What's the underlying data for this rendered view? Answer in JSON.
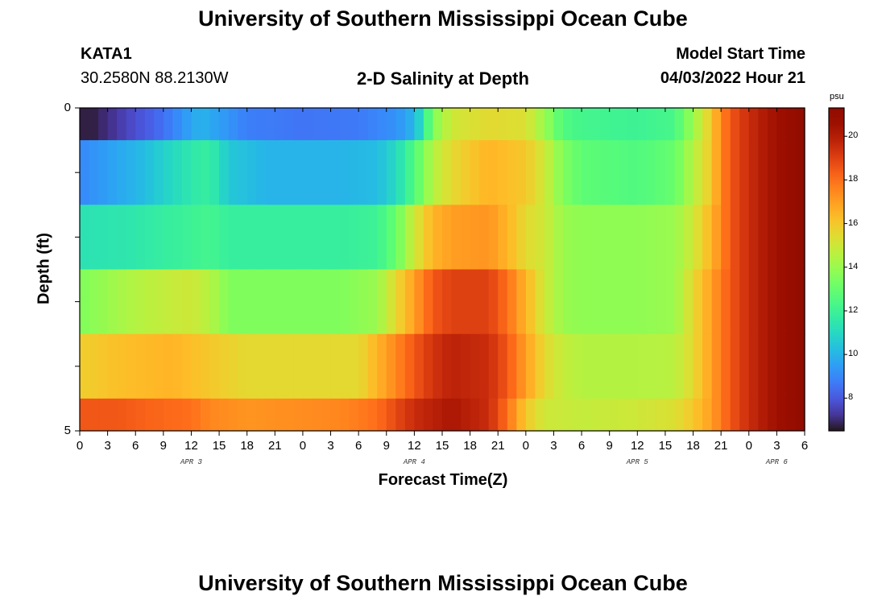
{
  "header": {
    "title": "University of Southern Mississippi Ocean Cube",
    "footer_title": "University of Southern Mississippi Ocean Cube",
    "station": "KATA1",
    "coords": "30.2580N  88.2130W",
    "plot_title": "2-D Salinity at Depth",
    "model_start_label": "Model Start Time",
    "model_start_value": "04/03/2022 Hour 21"
  },
  "chart_data": {
    "type": "heatmap",
    "title": "2-D Salinity at Depth",
    "xlabel": "Forecast Time(Z)",
    "ylabel": "Depth (ft)",
    "x_start_hour": 0,
    "x_end_hour": 78,
    "ylim": [
      0,
      5
    ],
    "y_tick_labels": [
      "0",
      "5"
    ],
    "x_tick_labels": [
      "0",
      "3",
      "6",
      "9",
      "12",
      "15",
      "18",
      "21",
      "0",
      "3",
      "6",
      "9",
      "12",
      "15",
      "18",
      "21",
      "0",
      "3",
      "6",
      "9",
      "12",
      "15",
      "18",
      "21",
      "0",
      "3",
      "6"
    ],
    "date_labels": [
      {
        "label": "APR 3",
        "hour": 12
      },
      {
        "label": "APR 4",
        "hour": 36
      },
      {
        "label": "APR 5",
        "hour": 60
      },
      {
        "label": "APR 6",
        "hour": 75
      }
    ],
    "colorbar": {
      "unit": "psu",
      "min": 6.5,
      "max": 21.3,
      "ticks": [
        8,
        10,
        12,
        14,
        16,
        18,
        20
      ]
    },
    "layers": [
      {
        "depth_from": 0,
        "depth_to": 0.5,
        "keypoints": [
          [
            0,
            6.8
          ],
          [
            1,
            6.6
          ],
          [
            4,
            7.3
          ],
          [
            9,
            8.5
          ],
          [
            13,
            10.0
          ],
          [
            15,
            9.5
          ],
          [
            18,
            8.8
          ],
          [
            24,
            8.6
          ],
          [
            30,
            8.7
          ],
          [
            34,
            9.2
          ],
          [
            36,
            10.0
          ],
          [
            37,
            11.5
          ],
          [
            38,
            13.5
          ],
          [
            40,
            15.0
          ],
          [
            44,
            15.5
          ],
          [
            48,
            15.3
          ],
          [
            50,
            14.0
          ],
          [
            52,
            12.5
          ],
          [
            54,
            12.2
          ],
          [
            60,
            12.0
          ],
          [
            64,
            12.3
          ],
          [
            66,
            14.0
          ],
          [
            68,
            16.0
          ],
          [
            69,
            17.5
          ],
          [
            70,
            18.5
          ],
          [
            72,
            19.5
          ],
          [
            75,
            20.5
          ],
          [
            78,
            21.0
          ]
        ]
      },
      {
        "depth_from": 0.5,
        "depth_to": 1.5,
        "keypoints": [
          [
            0,
            9.0
          ],
          [
            6,
            10.0
          ],
          [
            12,
            11.5
          ],
          [
            14,
            11.8
          ],
          [
            16,
            10.5
          ],
          [
            20,
            10.0
          ],
          [
            28,
            10.0
          ],
          [
            32,
            10.2
          ],
          [
            34,
            11.0
          ],
          [
            36,
            12.5
          ],
          [
            38,
            14.5
          ],
          [
            40,
            15.5
          ],
          [
            44,
            16.5
          ],
          [
            48,
            16.0
          ],
          [
            50,
            15.0
          ],
          [
            52,
            13.5
          ],
          [
            54,
            12.8
          ],
          [
            60,
            12.5
          ],
          [
            64,
            13.0
          ],
          [
            66,
            14.5
          ],
          [
            68,
            16.0
          ],
          [
            69,
            17.5
          ],
          [
            70,
            18.5
          ],
          [
            72,
            19.5
          ],
          [
            75,
            20.5
          ],
          [
            78,
            21.0
          ]
        ]
      },
      {
        "depth_from": 1.5,
        "depth_to": 2.5,
        "keypoints": [
          [
            0,
            11.3
          ],
          [
            6,
            11.5
          ],
          [
            12,
            12.0
          ],
          [
            14,
            12.2
          ],
          [
            16,
            11.8
          ],
          [
            28,
            11.8
          ],
          [
            32,
            12.0
          ],
          [
            34,
            13.0
          ],
          [
            36,
            15.0
          ],
          [
            38,
            16.5
          ],
          [
            40,
            17.0
          ],
          [
            44,
            17.2
          ],
          [
            46,
            16.5
          ],
          [
            48,
            15.5
          ],
          [
            50,
            15.0
          ],
          [
            52,
            14.0
          ],
          [
            54,
            13.8
          ],
          [
            60,
            13.8
          ],
          [
            64,
            14.0
          ],
          [
            66,
            15.0
          ],
          [
            68,
            16.5
          ],
          [
            69,
            17.5
          ],
          [
            70,
            18.5
          ],
          [
            72,
            19.5
          ],
          [
            75,
            20.5
          ],
          [
            78,
            21.0
          ]
        ]
      },
      {
        "depth_from": 2.5,
        "depth_to": 3.5,
        "keypoints": [
          [
            0,
            13.5
          ],
          [
            6,
            14.5
          ],
          [
            12,
            15.0
          ],
          [
            14,
            14.5
          ],
          [
            16,
            13.5
          ],
          [
            28,
            13.5
          ],
          [
            32,
            14.0
          ],
          [
            34,
            15.5
          ],
          [
            36,
            17.0
          ],
          [
            38,
            18.5
          ],
          [
            40,
            19.0
          ],
          [
            44,
            19.0
          ],
          [
            46,
            18.0
          ],
          [
            48,
            16.5
          ],
          [
            50,
            15.0
          ],
          [
            52,
            14.0
          ],
          [
            54,
            13.8
          ],
          [
            60,
            13.8
          ],
          [
            64,
            14.0
          ],
          [
            66,
            15.5
          ],
          [
            68,
            17.0
          ],
          [
            69,
            17.8
          ],
          [
            70,
            18.5
          ],
          [
            72,
            19.5
          ],
          [
            75,
            20.5
          ],
          [
            78,
            21.0
          ]
        ]
      },
      {
        "depth_from": 3.5,
        "depth_to": 4.5,
        "keypoints": [
          [
            0,
            15.8
          ],
          [
            4,
            16.2
          ],
          [
            10,
            16.5
          ],
          [
            14,
            16.0
          ],
          [
            18,
            15.5
          ],
          [
            30,
            15.5
          ],
          [
            32,
            16.5
          ],
          [
            34,
            17.5
          ],
          [
            36,
            18.5
          ],
          [
            38,
            19.3
          ],
          [
            40,
            19.8
          ],
          [
            44,
            19.5
          ],
          [
            46,
            18.5
          ],
          [
            48,
            17.0
          ],
          [
            50,
            15.5
          ],
          [
            52,
            14.8
          ],
          [
            54,
            14.5
          ],
          [
            60,
            14.5
          ],
          [
            64,
            14.6
          ],
          [
            66,
            15.5
          ],
          [
            68,
            17.0
          ],
          [
            69,
            17.8
          ],
          [
            70,
            18.5
          ],
          [
            72,
            19.5
          ],
          [
            75,
            20.5
          ],
          [
            78,
            21.0
          ]
        ]
      },
      {
        "depth_from": 4.5,
        "depth_to": 5,
        "keypoints": [
          [
            0,
            18.5
          ],
          [
            4,
            18.5
          ],
          [
            8,
            18.2
          ],
          [
            12,
            18.0
          ],
          [
            14,
            17.5
          ],
          [
            18,
            17.2
          ],
          [
            28,
            17.5
          ],
          [
            32,
            18.0
          ],
          [
            34,
            18.8
          ],
          [
            36,
            19.5
          ],
          [
            40,
            20.2
          ],
          [
            44,
            19.5
          ],
          [
            46,
            18.0
          ],
          [
            48,
            16.0
          ],
          [
            50,
            15.0
          ],
          [
            54,
            14.8
          ],
          [
            60,
            15.0
          ],
          [
            64,
            15.3
          ],
          [
            66,
            16.0
          ],
          [
            68,
            17.0
          ],
          [
            69,
            17.8
          ],
          [
            70,
            18.5
          ],
          [
            72,
            19.5
          ],
          [
            75,
            20.5
          ],
          [
            78,
            21.0
          ]
        ]
      }
    ]
  }
}
